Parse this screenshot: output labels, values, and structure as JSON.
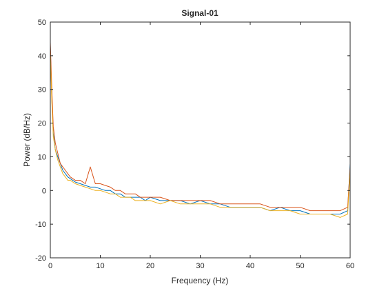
{
  "colors": {
    "axis": "#262626",
    "background": "#ffffff",
    "series": [
      "#0072BD",
      "#D95319",
      "#EDB120"
    ]
  },
  "chart_data": {
    "type": "line",
    "title": "Signal-01",
    "xlabel": "Frequency (Hz)",
    "ylabel": "Power (dB/Hz)",
    "xlim": [
      0,
      60
    ],
    "ylim": [
      -20,
      50
    ],
    "xticks": [
      0,
      10,
      20,
      30,
      40,
      50,
      60
    ],
    "yticks": [
      -20,
      -10,
      0,
      10,
      20,
      30,
      40,
      50
    ],
    "grid": false,
    "box": true,
    "series": [
      {
        "x": [
          0,
          0.3,
          0.6,
          1,
          1.5,
          2,
          2.5,
          3,
          3.5,
          4,
          5,
          6,
          7,
          8,
          9,
          10,
          11,
          12,
          13,
          14,
          15,
          16,
          17,
          18,
          19,
          20,
          22,
          24,
          26,
          28,
          30,
          32,
          34,
          36,
          38,
          40,
          42,
          44,
          46,
          48,
          50,
          52,
          54,
          56,
          58,
          59.5,
          60
        ],
        "y": [
          43,
          27,
          17,
          12,
          10,
          8,
          6,
          5,
          4,
          3.5,
          2.5,
          2,
          1.5,
          1,
          1,
          0.5,
          0,
          0,
          -1,
          -1,
          -2,
          -2,
          -2,
          -2,
          -3,
          -2,
          -3,
          -3,
          -3,
          -4,
          -3,
          -4,
          -4,
          -5,
          -5,
          -5,
          -5,
          -6,
          -5,
          -6,
          -6,
          -7,
          -7,
          -7,
          -7,
          -6,
          8
        ]
      },
      {
        "x": [
          0,
          0.3,
          0.6,
          1,
          1.5,
          2,
          2.5,
          3,
          3.5,
          4,
          5,
          6,
          7,
          8,
          9,
          10,
          11,
          12,
          13,
          14,
          15,
          16,
          17,
          18,
          19,
          20,
          22,
          24,
          26,
          28,
          30,
          32,
          34,
          36,
          38,
          40,
          42,
          44,
          46,
          48,
          50,
          52,
          54,
          56,
          58,
          59.5,
          60
        ],
        "y": [
          44,
          30,
          19,
          14,
          11,
          8,
          7,
          6,
          5,
          4,
          3,
          3,
          2,
          7,
          2,
          2,
          1.5,
          1,
          0,
          0,
          -1,
          -1,
          -1,
          -2,
          -2,
          -2,
          -2,
          -3,
          -3,
          -3,
          -3,
          -3,
          -4,
          -4,
          -4,
          -4,
          -4,
          -5,
          -5,
          -5,
          -5,
          -6,
          -6,
          -6,
          -6,
          -5,
          7
        ]
      },
      {
        "x": [
          0,
          0.3,
          0.6,
          1,
          1.5,
          2,
          2.5,
          3,
          3.5,
          4,
          5,
          6,
          7,
          8,
          9,
          10,
          11,
          12,
          13,
          14,
          15,
          16,
          17,
          18,
          19,
          20,
          22,
          24,
          26,
          28,
          30,
          32,
          34,
          36,
          38,
          40,
          42,
          44,
          46,
          48,
          50,
          52,
          54,
          56,
          58,
          59.5,
          60
        ],
        "y": [
          41,
          26,
          16,
          12,
          9,
          7,
          5,
          4,
          3,
          3,
          2,
          1.5,
          1,
          0.5,
          0,
          0,
          -0.5,
          -1,
          -1,
          -2,
          -2,
          -2,
          -3,
          -3,
          -3,
          -3,
          -4,
          -3,
          -4,
          -4,
          -4,
          -4,
          -5,
          -5,
          -5,
          -5,
          -5,
          -6,
          -6,
          -6,
          -7,
          -7,
          -7,
          -7,
          -8,
          -7,
          6
        ]
      }
    ]
  }
}
